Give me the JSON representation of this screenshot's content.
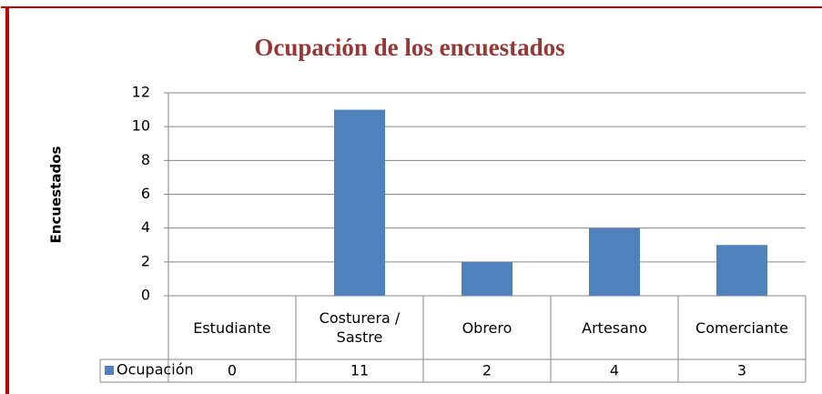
{
  "chart_data": {
    "type": "bar",
    "title": "Ocupación de los encuestados",
    "ylabel": "Encuestados",
    "categories": [
      "Estudiante",
      "Costurera / Sastre",
      "Obrero",
      "Artesano",
      "Comerciante"
    ],
    "series": [
      {
        "name": "Ocupación",
        "color": "#4f81bd",
        "values": [
          0,
          11,
          2,
          4,
          3
        ]
      }
    ],
    "ylim": [
      0,
      12
    ],
    "yticks": [
      0,
      2,
      4,
      6,
      8,
      10,
      12
    ],
    "grid": true
  }
}
